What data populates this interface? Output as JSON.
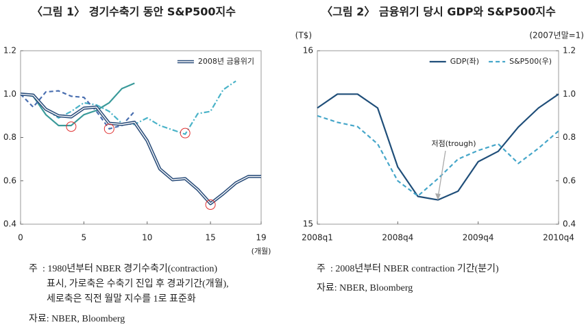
{
  "chart_data": [
    {
      "type": "line",
      "title": "〈그림 1〉 경기수축기 동안 S&P500지수",
      "x": [
        0,
        1,
        2,
        3,
        4,
        5,
        6,
        7,
        8,
        9,
        10,
        11,
        12,
        13,
        14,
        15,
        16,
        17,
        18,
        19
      ],
      "xlim": [
        0,
        19
      ],
      "xticks": [
        0,
        5,
        10,
        15,
        19
      ],
      "xlabel": "(개월)",
      "ylim": [
        0.4,
        1.2
      ],
      "yticks": [
        0.4,
        0.6,
        0.8,
        {
          "value": 1,
          "label": "1.0"
        },
        1.2
      ],
      "grid": false,
      "legend": "upper right",
      "series": [
        {
          "color": "#3a9a9a",
          "style": "solid",
          "values": [
            1.0,
            0.99,
            0.905,
            0.855,
            0.855,
            0.905,
            0.925,
            0.96,
            1.025,
            1.05,
            null,
            null,
            null,
            null,
            null,
            null,
            null,
            null,
            null,
            null
          ]
        },
        {
          "color": "#4ab3c8",
          "style": "dashdot",
          "values": [
            1.0,
            0.99,
            0.93,
            0.89,
            0.92,
            0.96,
            0.95,
            0.92,
            0.865,
            0.86,
            0.89,
            0.855,
            0.835,
            0.815,
            0.91,
            0.92,
            1.02,
            1.06,
            null,
            null
          ]
        },
        {
          "color": "#4a6fb0",
          "style": "dash",
          "values": [
            1.0,
            0.94,
            1.01,
            1.015,
            0.99,
            0.985,
            0.92,
            0.84,
            0.855,
            0.92,
            null,
            null,
            null,
            null,
            null,
            null,
            null,
            null,
            null,
            null
          ]
        },
        {
          "name": "2008년 금융위기",
          "color": "#2a4d7a",
          "style": "double",
          "values": [
            1.0,
            0.995,
            0.93,
            0.9,
            0.895,
            0.935,
            0.94,
            0.865,
            0.86,
            0.87,
            0.785,
            0.655,
            0.605,
            0.61,
            0.56,
            0.495,
            0.54,
            0.59,
            0.62,
            0.62
          ]
        }
      ],
      "highlights": [
        {
          "x": 4,
          "y": 0.85
        },
        {
          "x": 7,
          "y": 0.84
        },
        {
          "x": 13,
          "y": 0.82
        },
        {
          "x": 15,
          "y": 0.49
        }
      ],
      "highlight_color": "#e03030",
      "note_label": "주",
      "notes": [
        ": 1980년부터 NBER 경기수축기(contraction)",
        "표시, 가로축은 수축기 진입 후 경과기간(개월),",
        "세로축은 직전 월말 지수를 1로 표준화"
      ],
      "source": "자료: NBER, Bloomberg"
    },
    {
      "type": "line",
      "title": "〈그림 2〉 금융위기 당시 GDP와 S&P500지수",
      "categories": [
        "2008q1",
        null,
        null,
        null,
        "2008q4",
        null,
        null,
        null,
        "2009q4",
        null,
        null,
        null,
        "2010q4"
      ],
      "ylabel": "(T$)",
      "ylim": [
        15,
        16
      ],
      "yticks": [
        15,
        16
      ],
      "y2label": "(2007년말=1)",
      "y2lim": [
        0.4,
        1.2
      ],
      "y2ticks": [
        0.4,
        0.6,
        0.8,
        {
          "value": 1,
          "label": "1.0"
        },
        1.2
      ],
      "grid": false,
      "legend": "upper right",
      "series": [
        {
          "name": "GDP(좌)",
          "color": "#1f4e79",
          "style": "solid",
          "values": [
            15.67,
            15.75,
            15.75,
            15.67,
            15.33,
            15.16,
            15.14,
            15.19,
            15.36,
            15.42,
            15.56,
            15.67,
            15.75
          ]
        },
        {
          "name": "S&P500(우)",
          "color": "#45a6c9",
          "style": "dash",
          "axis": "y2",
          "values": [
            0.9,
            0.87,
            0.85,
            0.77,
            0.6,
            0.53,
            0.61,
            0.7,
            0.74,
            0.77,
            0.68,
            0.75,
            0.83
          ]
        }
      ],
      "annotation": "저점(trough)",
      "note_label": "주",
      "notes": [
        ": 2008년부터 NBER contraction 기간(분기)"
      ],
      "source": "자료: NBER, Bloomberg"
    }
  ]
}
